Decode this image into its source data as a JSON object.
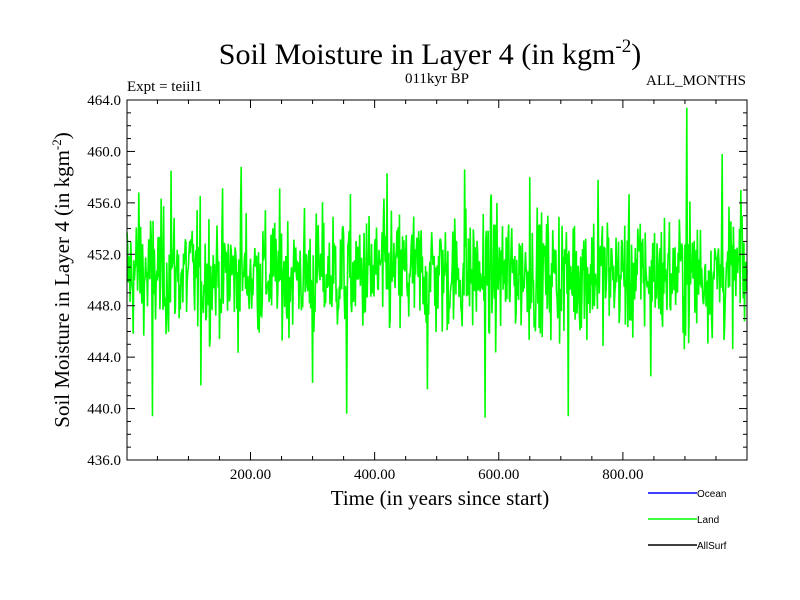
{
  "chart_data": {
    "type": "line",
    "title": "Soil Moisture in Layer 4 (in kgm",
    "title_sup": "-2",
    "title_close": ")",
    "subtitle_left": "Expt = teiil1",
    "subtitle_center": "011kyr BP",
    "subtitle_right": "ALL_MONTHS",
    "xlabel": "Time (in years since start)",
    "ylabel": "Soil Moisture in Layer 4 (in kgm",
    "ylabel_sup": "-2",
    "ylabel_close": ")",
    "xlim": [
      1,
      1000
    ],
    "ylim": [
      436.0,
      464.0
    ],
    "xticks": [
      200,
      400,
      600,
      800
    ],
    "xtick_labels": [
      "200.00",
      "400.00",
      "600.00",
      "800.00"
    ],
    "yticks": [
      436,
      440,
      444,
      448,
      452,
      456,
      460,
      464
    ],
    "ytick_labels": [
      "436.0",
      "440.0",
      "444.0",
      "448.0",
      "452.0",
      "456.0",
      "460.0",
      "464.0"
    ],
    "grid": false,
    "legend_position": "bottom-right",
    "series": [
      {
        "name": "Ocean",
        "color": "#0000ff",
        "values": []
      },
      {
        "name": "Land",
        "color": "#00ff00",
        "mean": 450.5,
        "approx_range": [
          439.2,
          463.4
        ],
        "n_points": 1000,
        "notable_points": [
          {
            "x": 20,
            "y": 456.8
          },
          {
            "x": 42,
            "y": 439.4
          },
          {
            "x": 72,
            "y": 458.5
          },
          {
            "x": 120,
            "y": 441.8
          },
          {
            "x": 185,
            "y": 458.8
          },
          {
            "x": 300,
            "y": 442.0
          },
          {
            "x": 355,
            "y": 439.6
          },
          {
            "x": 420,
            "y": 458.3
          },
          {
            "x": 485,
            "y": 441.5
          },
          {
            "x": 545,
            "y": 458.6
          },
          {
            "x": 578,
            "y": 439.3
          },
          {
            "x": 650,
            "y": 458.0
          },
          {
            "x": 712,
            "y": 439.4
          },
          {
            "x": 760,
            "y": 457.8
          },
          {
            "x": 845,
            "y": 442.5
          },
          {
            "x": 903,
            "y": 463.4
          },
          {
            "x": 960,
            "y": 459.8
          },
          {
            "x": 990,
            "y": 457.0
          }
        ]
      },
      {
        "name": "AllSurf",
        "color": "#000000",
        "values": []
      }
    ]
  }
}
